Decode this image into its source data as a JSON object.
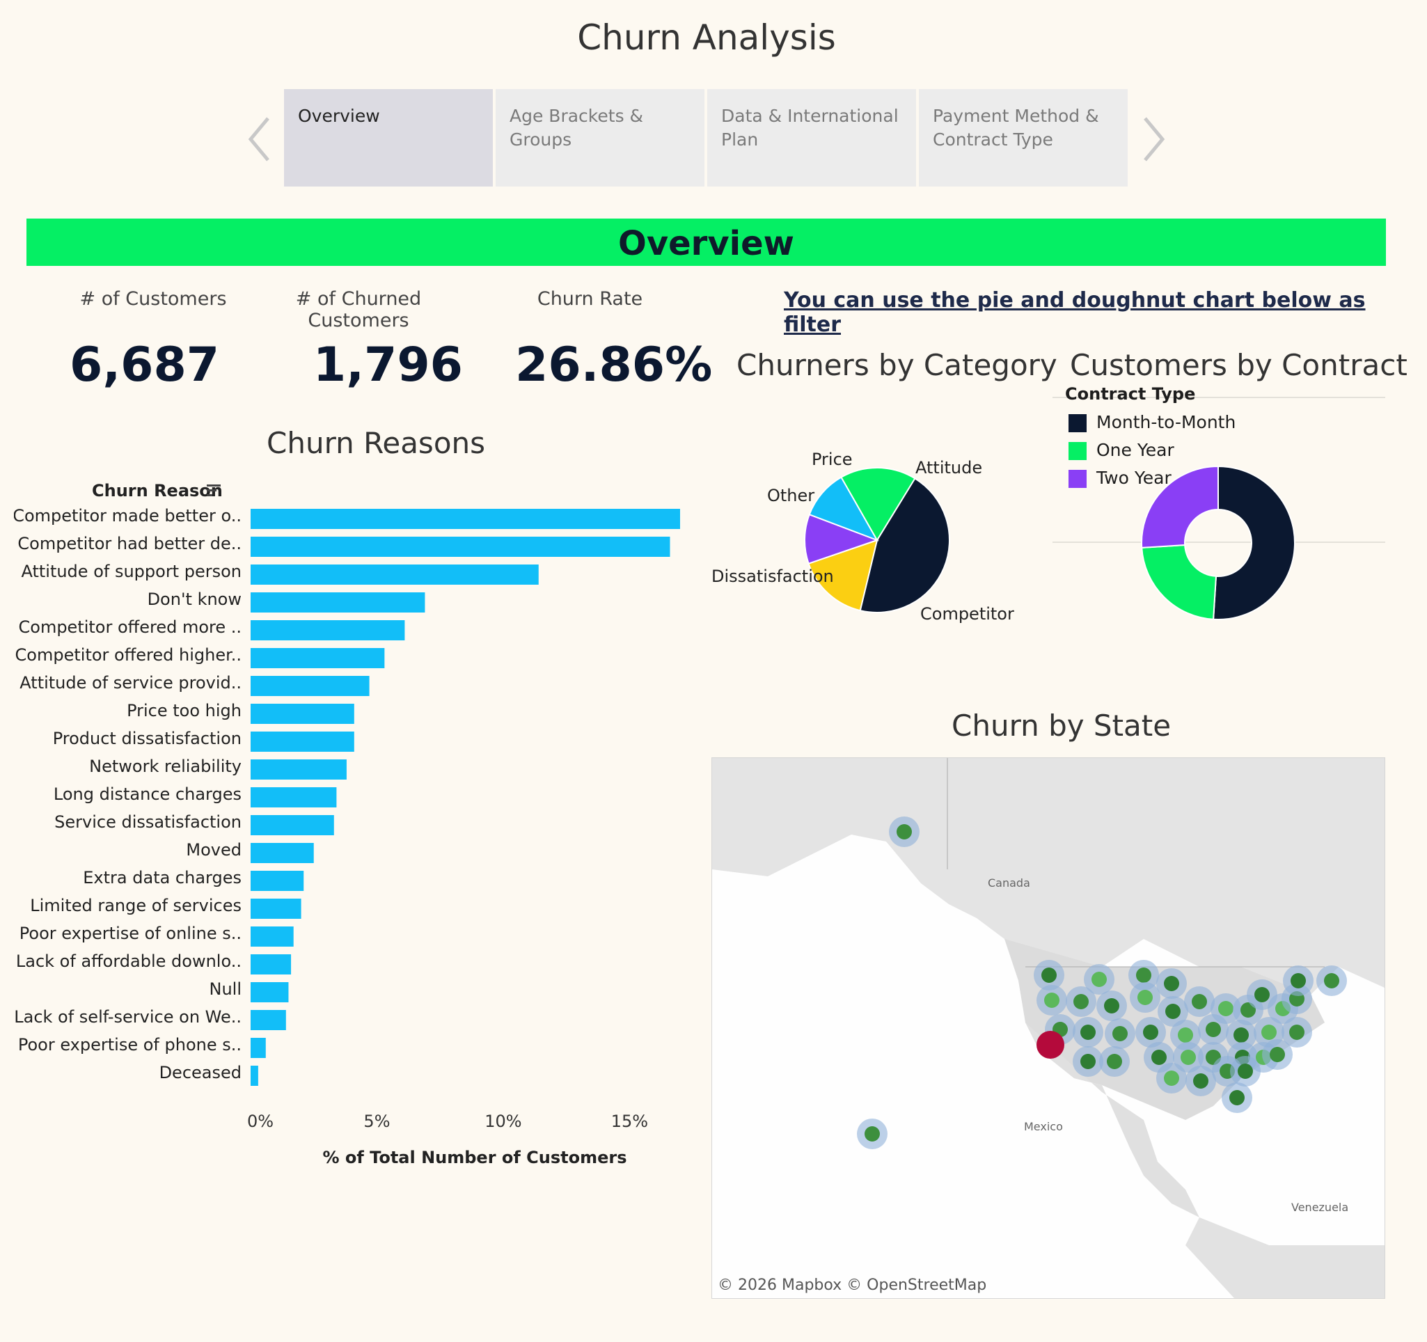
{
  "title": "Churn Analysis",
  "tabs": [
    {
      "label": "Overview",
      "active": true
    },
    {
      "label": "Age Brackets & Groups",
      "active": false
    },
    {
      "label": "Data & International Plan",
      "active": false
    },
    {
      "label": "Payment Method & Contract Type",
      "active": false
    }
  ],
  "icons": {
    "prev": "chevron-left-icon",
    "next": "chevron-right-icon",
    "sort": "sort-icon"
  },
  "banner": "Overview",
  "kpis": [
    {
      "label": "# of Customers",
      "value": "6,687"
    },
    {
      "label": "# of Churned Customers",
      "value": "1,796"
    },
    {
      "label": "Churn Rate",
      "value": "26.86%"
    }
  ],
  "filter_note": "You can use the pie and doughnut chart below as filter",
  "colors": {
    "bar": "#12bef8",
    "green": "#05ef64",
    "navy": "#0b1830",
    "purple": "#8a3ff5",
    "yellow": "#fbcf12",
    "blue": "#12bef8",
    "red": "#b40a3b"
  },
  "chart_data": [
    {
      "type": "bar",
      "title": "Churn Reasons",
      "category_label": "Churn Reason",
      "xlabel": "% of Total Number of Customers",
      "xlim": [
        0,
        17
      ],
      "ticks": [
        "0%",
        "5%",
        "10%",
        "15%"
      ],
      "tick_values": [
        0,
        5,
        10,
        15
      ],
      "categories": [
        "Competitor made better o..",
        "Competitor had better de..",
        "Attitude of support person",
        "Don't know",
        "Competitor offered more ..",
        "Competitor offered higher..",
        "Attitude of service provid..",
        "Price too high",
        "Product dissatisfaction",
        "Network reliability",
        "Long distance charges",
        "Service dissatisfaction",
        "Moved",
        "Extra data charges",
        "Limited range of services",
        "Poor expertise of online s..",
        "Lack of affordable downlo..",
        "Null",
        "Lack of self-service on We..",
        "Poor expertise of phone s..",
        "Deceased"
      ],
      "values": [
        17.0,
        16.6,
        11.4,
        6.9,
        6.1,
        5.3,
        4.7,
        4.1,
        4.1,
        3.8,
        3.4,
        3.3,
        2.5,
        2.1,
        2.0,
        1.7,
        1.6,
        1.5,
        1.4,
        0.6,
        0.3
      ]
    },
    {
      "type": "pie",
      "title": "Churners by Category",
      "labels": [
        "Competitor",
        "Dissatisfaction",
        "Other",
        "Price",
        "Attitude"
      ],
      "values": [
        45,
        16,
        11,
        11,
        17
      ],
      "colors": [
        "#0b1830",
        "#fbcf12",
        "#8a3ff5",
        "#12bef8",
        "#05ef64"
      ]
    },
    {
      "type": "pie",
      "title": "Customers by Contract",
      "legend_title": "Contract Type",
      "labels": [
        "Month-to-Month",
        "One Year",
        "Two Year"
      ],
      "values": [
        51,
        23,
        26
      ],
      "colors": [
        "#0b1830",
        "#05ef64",
        "#8a3ff5"
      ]
    }
  ],
  "map": {
    "title": "Churn by State",
    "labels": {
      "canada": "Canada",
      "mexico": "Mexico",
      "venezuela": "Venezuela"
    },
    "credit": "© 2026 Mapbox  © OpenStreetMap"
  }
}
